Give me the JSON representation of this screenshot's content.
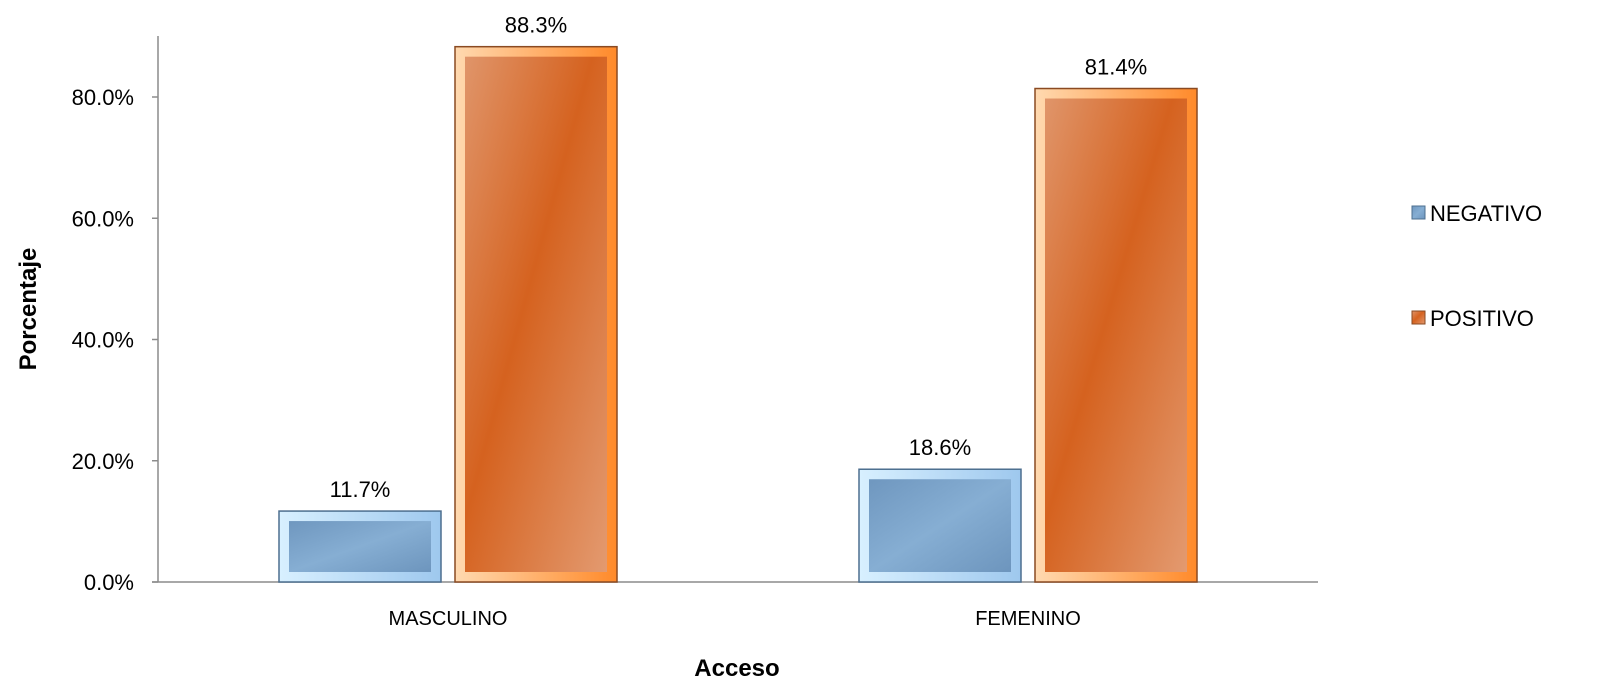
{
  "chart_data": {
    "type": "bar",
    "categories": [
      "MASCULINO",
      "FEMENINO"
    ],
    "series": [
      {
        "name": "NEGATIVO",
        "values": [
          11.7,
          18.6
        ],
        "labels": [
          "11.7%",
          "18.6%"
        ],
        "color": "#7fa7cc"
      },
      {
        "name": "POSITIVO",
        "values": [
          88.3,
          81.4
        ],
        "labels": [
          "88.3%",
          "81.4%"
        ],
        "color": "#d9682a"
      }
    ],
    "xlabel": "Acceso",
    "ylabel": "Porcentaje",
    "ylim": [
      0,
      90
    ],
    "yticks": [
      "0.0%",
      "20.0%",
      "40.0%",
      "60.0%",
      "80.0%"
    ],
    "ytick_values": [
      0,
      20,
      40,
      60,
      80
    ],
    "grid": false,
    "legend_position": "right"
  }
}
